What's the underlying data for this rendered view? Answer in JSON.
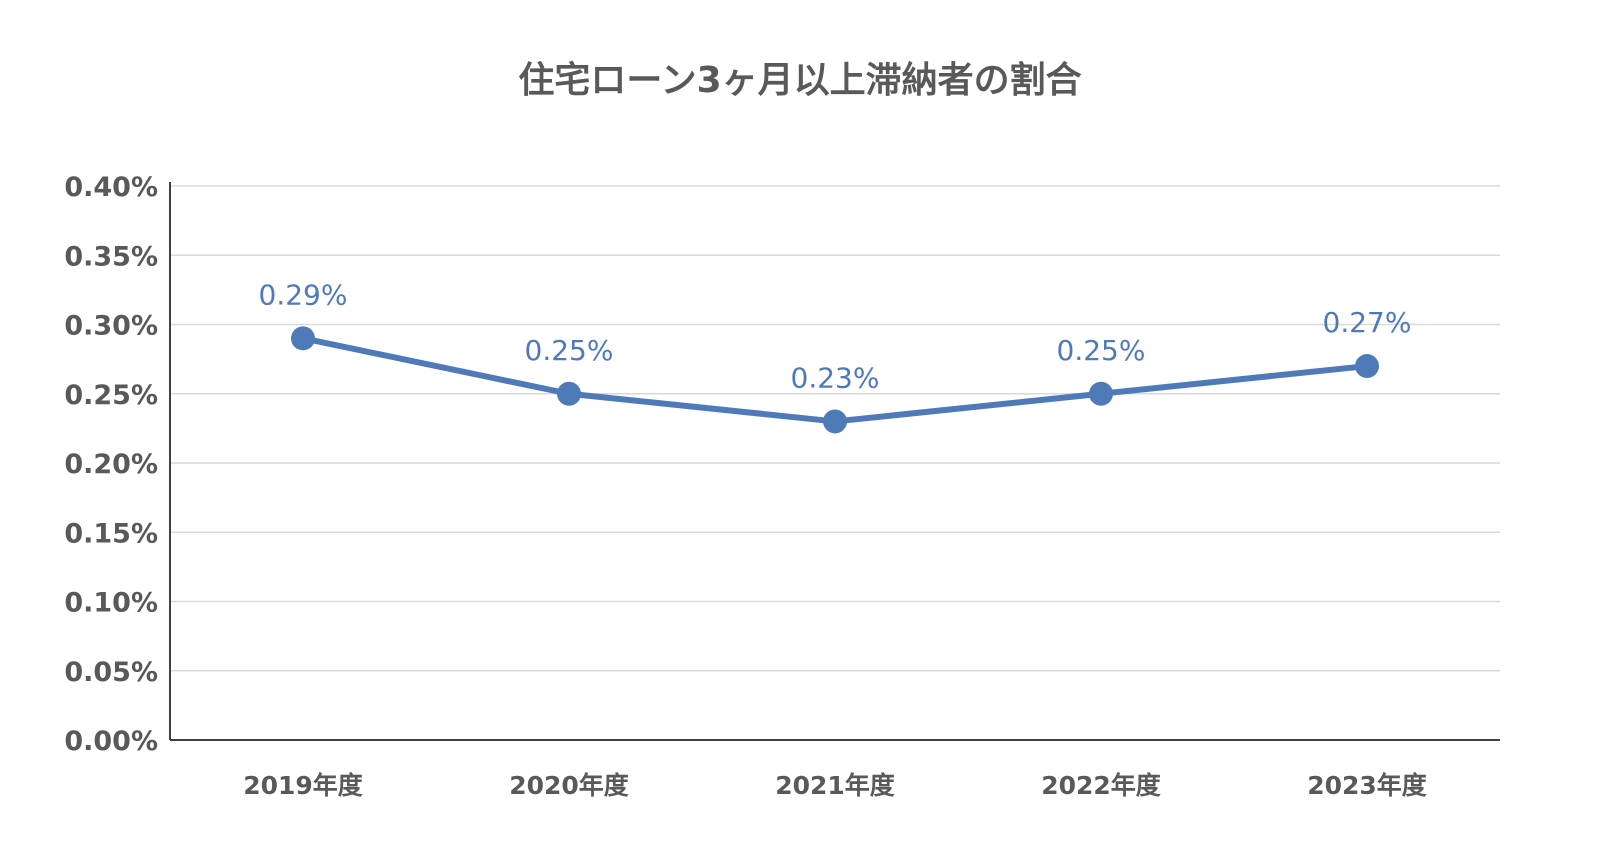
{
  "chart_data": {
    "type": "line",
    "title": "住宅ローン3ヶ月以上滞納者の割合",
    "categories": [
      "2019年度",
      "2020年度",
      "2021年度",
      "2022年度",
      "2023年度"
    ],
    "series": [
      {
        "values": [
          0.29,
          0.25,
          0.23,
          0.25,
          0.27
        ],
        "data_labels": [
          "0.29%",
          "0.25%",
          "0.23%",
          "0.25%",
          "0.27%"
        ],
        "color": "#4f7ab8"
      }
    ],
    "ylim": [
      0,
      0.4
    ],
    "yticks": [
      0,
      0.05,
      0.1,
      0.15,
      0.2,
      0.25,
      0.3,
      0.35,
      0.4
    ],
    "ytick_labels": [
      "0.00%",
      "0.05%",
      "0.10%",
      "0.15%",
      "0.20%",
      "0.25%",
      "0.30%",
      "0.35%",
      "0.40%"
    ],
    "grid": "horizontal",
    "legend": "none"
  }
}
